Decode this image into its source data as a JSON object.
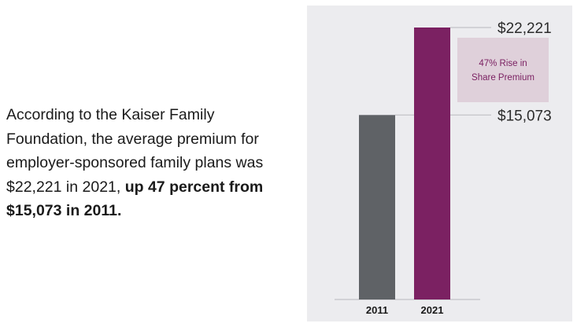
{
  "description": {
    "text_plain": "According to the Kaiser Family Foundation, the average premium for employer-sponsored family plans was $22,221 in 2021, ",
    "text_bold": "up 47 percent from $15,073 in 2011."
  },
  "chart_data": {
    "type": "bar",
    "categories": [
      "2011",
      "2021"
    ],
    "values": [
      15073,
      22221
    ],
    "value_labels": [
      "$15,073",
      "$22,221"
    ],
    "ylim": [
      0,
      22221
    ],
    "grid": false,
    "title": "",
    "xlabel": "",
    "ylabel": "",
    "annotation": {
      "lines": [
        "47% Rise in",
        "Share Premium"
      ]
    }
  },
  "colors": {
    "panel_bg": "#ececef",
    "bar_2011": "#5f6266",
    "bar_2021": "#7b2162",
    "callout_bg": "#dfd0da",
    "callout_text": "#7b2162",
    "guide_line": "#b9b9bd"
  }
}
